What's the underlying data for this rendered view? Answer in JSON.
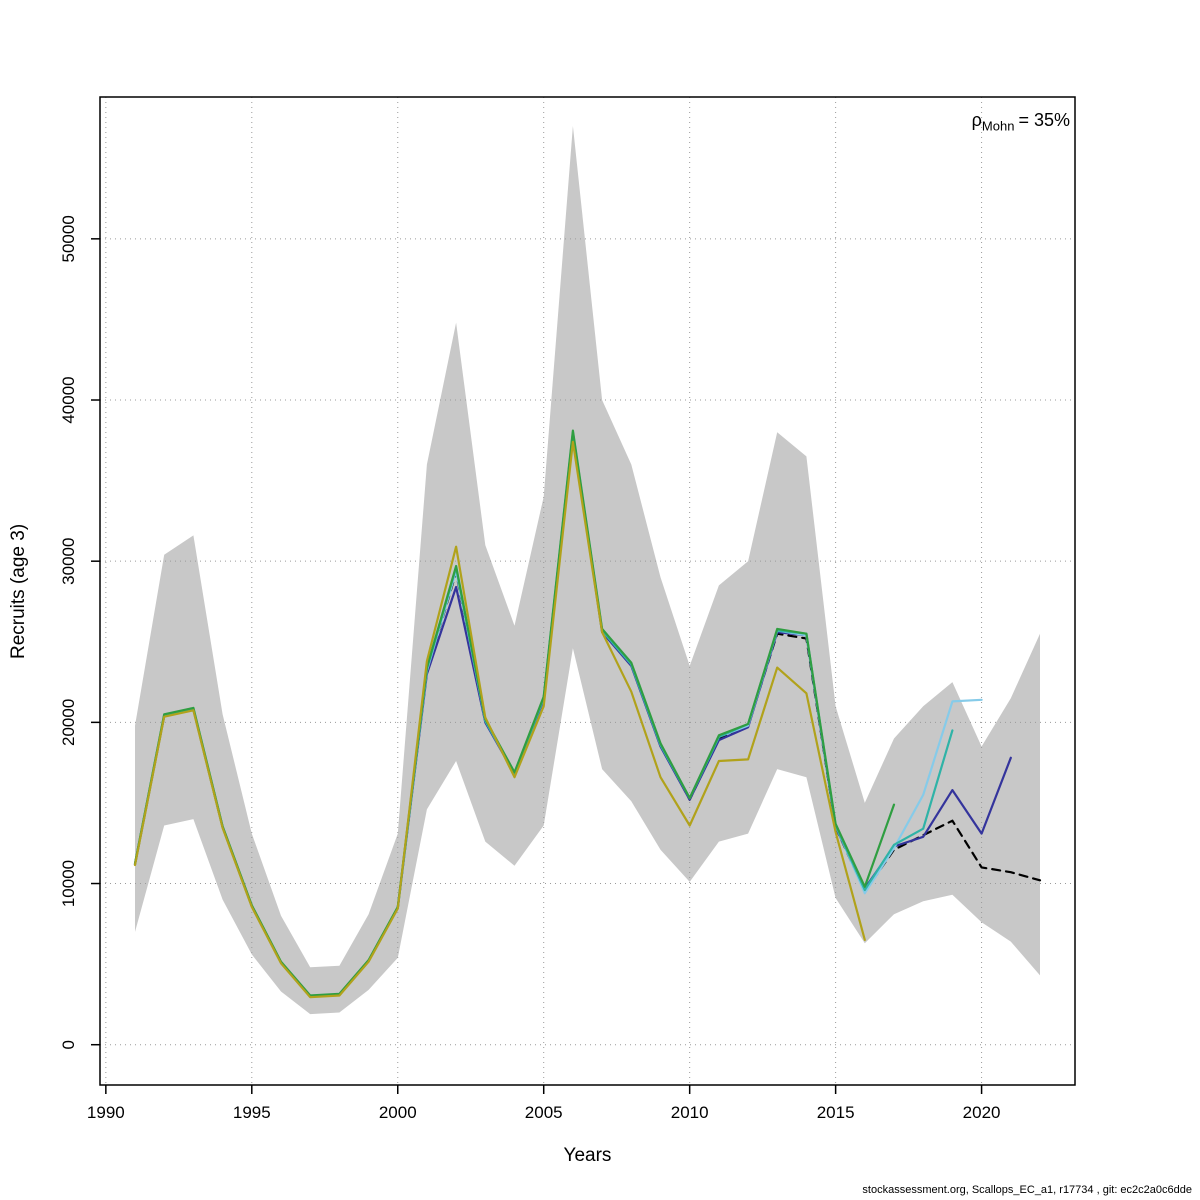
{
  "chart_data": {
    "type": "line",
    "title": "",
    "xlabel": "Years",
    "ylabel": "Recruits (age 3)",
    "x_domain": [
      1989.8,
      2023.2
    ],
    "y_domain": [
      -2500,
      58800
    ],
    "x_ticks": [
      1990,
      1995,
      2000,
      2005,
      2010,
      2015,
      2020
    ],
    "y_ticks": [
      0,
      10000,
      20000,
      30000,
      40000,
      50000
    ],
    "grid": true,
    "legend": false,
    "ribbon": {
      "name": "confidence-band",
      "color": "#c8c8c8",
      "start_year": 1991,
      "lower": [
        7000,
        13600,
        14000,
        9000,
        5600,
        3300,
        1900,
        2000,
        3400,
        5400,
        14600,
        17600,
        12600,
        11100,
        13600,
        24600,
        17100,
        15100,
        12100,
        10100,
        12600,
        13100,
        17100,
        16600,
        9100,
        6300,
        8100,
        8900,
        9300,
        7600,
        6400,
        4300
      ],
      "upper": [
        19800,
        30400,
        31600,
        20500,
        13100,
        8000,
        4800,
        4900,
        8100,
        13100,
        36000,
        44800,
        31000,
        26000,
        34000,
        57000,
        40000,
        36000,
        29000,
        23500,
        28500,
        30000,
        38000,
        36500,
        21000,
        15000,
        19000,
        21000,
        22500,
        18500,
        21500,
        25500
      ]
    },
    "series": [
      {
        "name": "base-run-2022",
        "color": "#000000",
        "dashed": true,
        "start_year": 1991,
        "values": [
          11200,
          20400,
          20800,
          13500,
          8600,
          5100,
          3000,
          3100,
          5200,
          8500,
          23200,
          29300,
          20100,
          16800,
          21500,
          37900,
          25700,
          23600,
          18600,
          15200,
          19000,
          19800,
          25500,
          25200,
          13500,
          9500,
          12100,
          13000,
          13900,
          11000,
          10700,
          10200
        ]
      },
      {
        "name": "retro-peel-2021",
        "color": "#34349c",
        "dashed": false,
        "start_year": 1991,
        "values": [
          11200,
          20400,
          20800,
          13500,
          8600,
          5100,
          3000,
          3100,
          5200,
          8500,
          23000,
          28400,
          20000,
          16800,
          21400,
          37800,
          25600,
          23500,
          18500,
          15200,
          18900,
          19700,
          25600,
          25400,
          13500,
          9700,
          12300,
          12900,
          15800,
          13100,
          17800
        ]
      },
      {
        "name": "retro-peel-2020",
        "color": "#86cbe9",
        "dashed": false,
        "start_year": 1991,
        "values": [
          11200,
          20400,
          20800,
          13500,
          8600,
          5100,
          3000,
          3100,
          5200,
          8500,
          23200,
          29400,
          20100,
          16800,
          21500,
          37900,
          25700,
          23600,
          18600,
          15300,
          19100,
          19800,
          25700,
          25400,
          13600,
          9400,
          12200,
          15500,
          21300,
          21400
        ]
      },
      {
        "name": "retro-peel-2019",
        "color": "#2fb3a7",
        "dashed": false,
        "start_year": 1991,
        "values": [
          11200,
          20450,
          20850,
          13500,
          8600,
          5100,
          3000,
          3100,
          5200,
          8500,
          23300,
          29600,
          20100,
          16800,
          21500,
          38000,
          25700,
          23600,
          18600,
          15300,
          19100,
          19900,
          25700,
          25500,
          13600,
          9600,
          12400,
          13400,
          19500
        ]
      },
      {
        "name": "retro-peel-2017",
        "color": "#2f9e41",
        "dashed": false,
        "start_year": 1991,
        "values": [
          11250,
          20500,
          20900,
          13550,
          8650,
          5150,
          3050,
          3150,
          5250,
          8550,
          23400,
          29700,
          20200,
          16900,
          21600,
          38100,
          25800,
          23700,
          18700,
          15300,
          19200,
          19900,
          25800,
          25500,
          13700,
          9800,
          14900
        ]
      },
      {
        "name": "retro-peel-2016",
        "color": "#b1a21b",
        "dashed": false,
        "start_year": 1991,
        "values": [
          11150,
          20350,
          20750,
          13450,
          8550,
          5050,
          2950,
          3050,
          5150,
          8450,
          23800,
          30900,
          20300,
          16600,
          21000,
          37400,
          25600,
          21900,
          16600,
          13600,
          17600,
          17700,
          23400,
          21800,
          13200,
          6500
        ]
      }
    ],
    "annotation": {
      "symbol": "ρ",
      "subscript": "Mohn",
      "value": "= 35%"
    }
  },
  "footer": {
    "text": "stockassessment.org, Scallops_EC_a1, r17734 , git: ec2c2a0c6dde"
  }
}
